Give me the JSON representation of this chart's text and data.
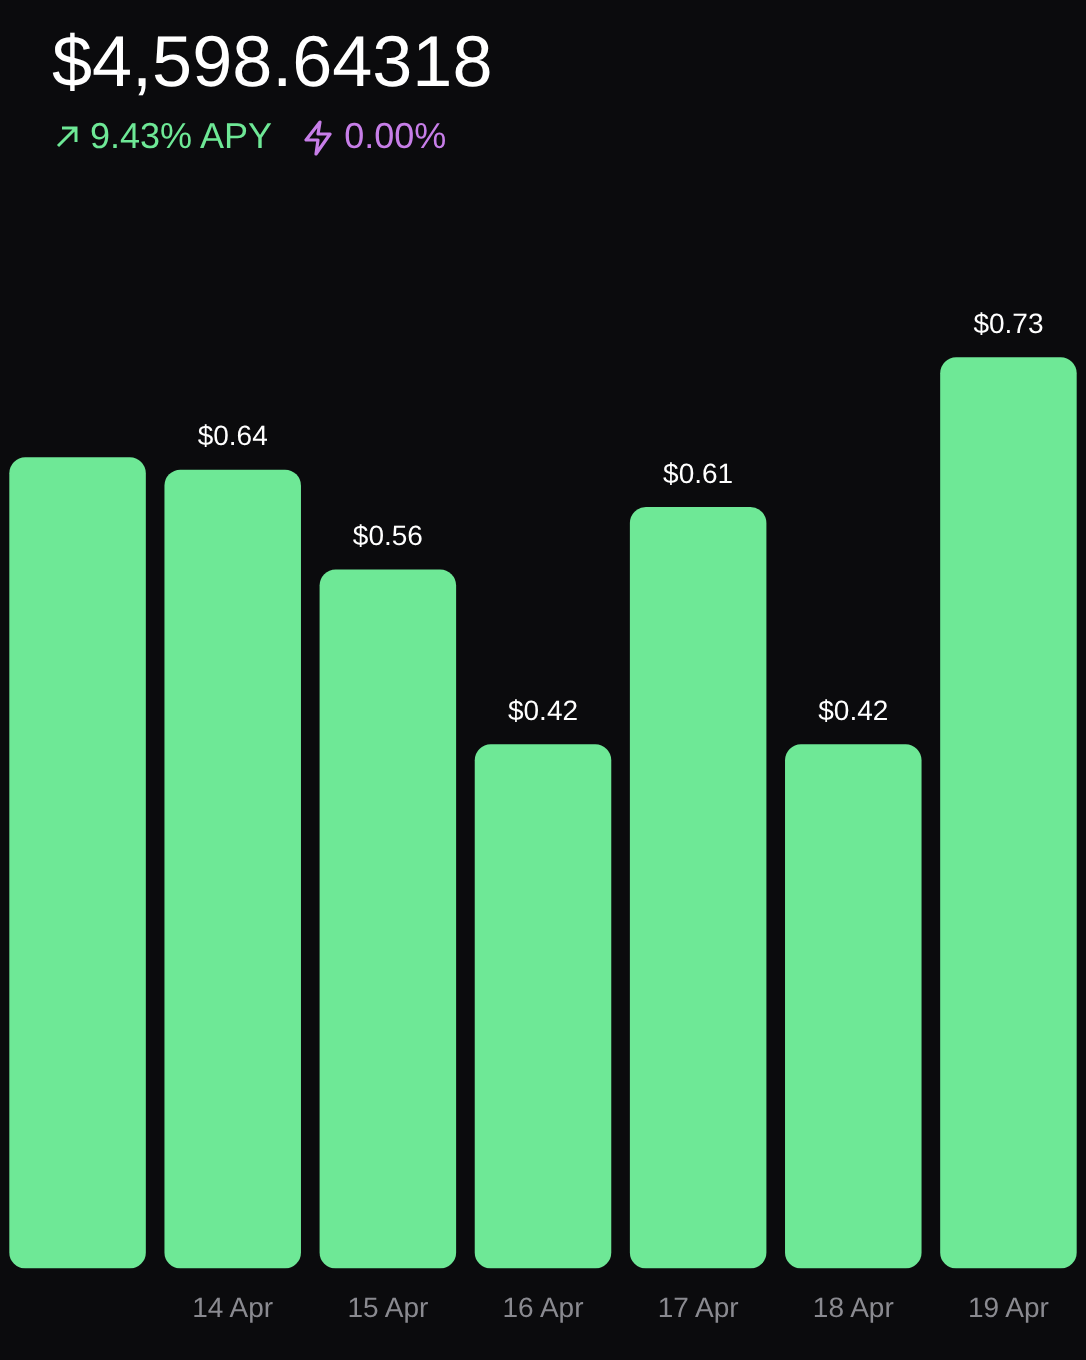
{
  "chart_data": {
    "type": "bar",
    "title": "$4,598.64318",
    "annotations": [
      "9.43% APY",
      "0.00%"
    ],
    "categories": [
      null,
      "14 Apr",
      "15 Apr",
      "16 Apr",
      "17 Apr",
      "18 Apr",
      "19 Apr"
    ],
    "values": [
      0.65,
      0.64,
      0.56,
      0.42,
      0.61,
      0.42,
      0.73
    ],
    "value_labels": [
      null,
      "$0.64",
      "$0.56",
      "$0.42",
      "$0.61",
      "$0.42",
      "$0.73"
    ],
    "color": "#6ee896"
  }
}
